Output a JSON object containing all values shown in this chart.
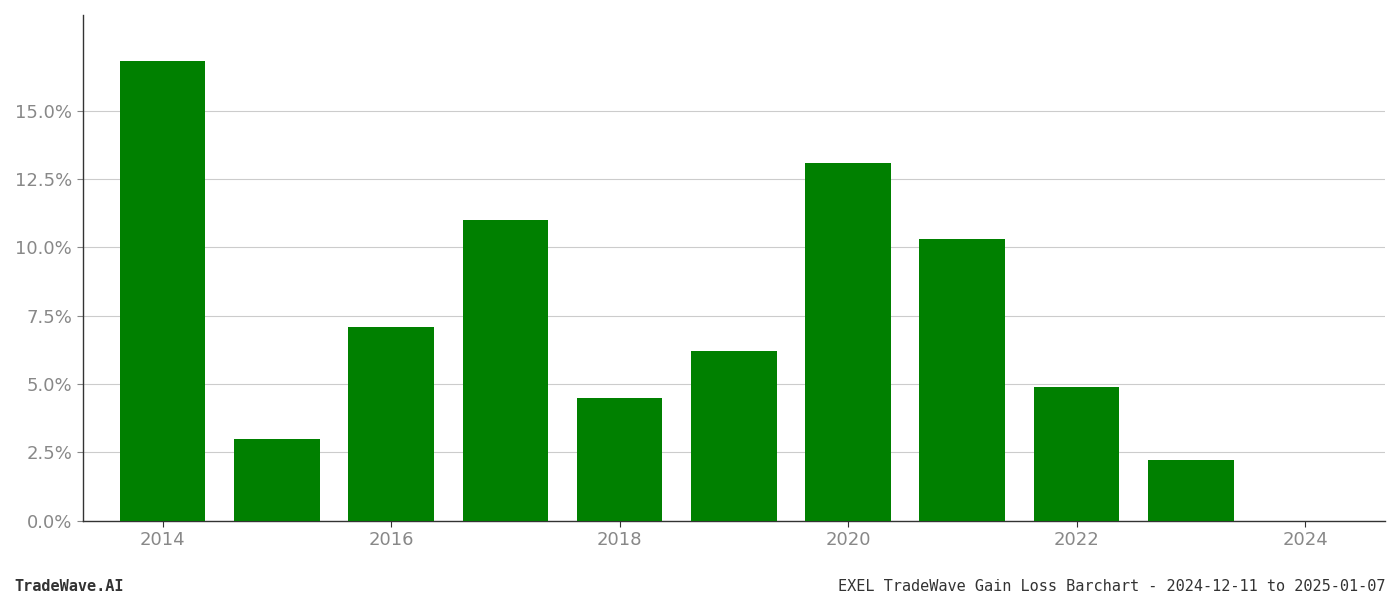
{
  "years": [
    2014,
    2015,
    2016,
    2017,
    2018,
    2019,
    2020,
    2021,
    2022,
    2023
  ],
  "values": [
    0.168,
    0.03,
    0.071,
    0.11,
    0.045,
    0.062,
    0.131,
    0.103,
    0.049,
    0.022
  ],
  "bar_color": "#008000",
  "background_color": "#ffffff",
  "grid_color": "#cccccc",
  "axis_label_color": "#888888",
  "spine_color": "#333333",
  "footer_left": "TradeWave.AI",
  "footer_right": "EXEL TradeWave Gain Loss Barchart - 2024-12-11 to 2025-01-07",
  "ylim": [
    0,
    0.185
  ],
  "yticks": [
    0.0,
    0.025,
    0.05,
    0.075,
    0.1,
    0.125,
    0.15
  ],
  "xticks": [
    2014,
    2016,
    2018,
    2020,
    2022,
    2024
  ],
  "xlim": [
    2013.3,
    2024.7
  ],
  "bar_width": 0.75,
  "tick_fontsize": 13,
  "footer_fontsize": 11
}
